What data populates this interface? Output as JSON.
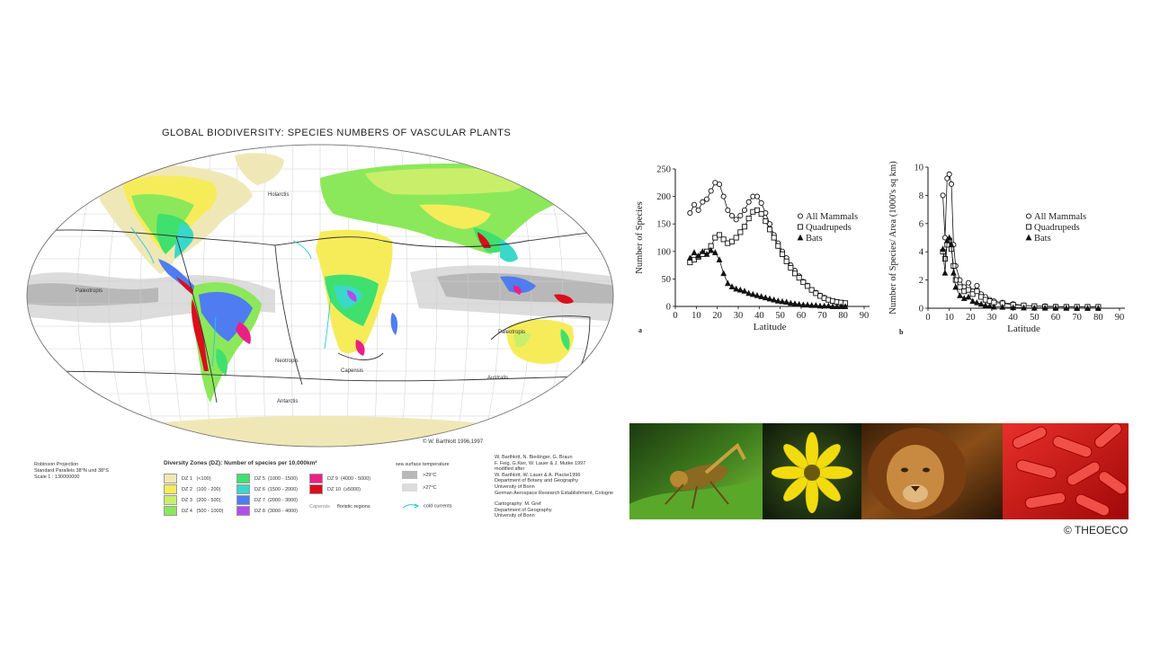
{
  "map": {
    "title": "GLOBAL BIODIVERSITY:  SPECIES NUMBERS OF VASCULAR PLANTS",
    "credit": "© W. Barthlott 1996,1997",
    "regions": [
      "Holarctis",
      "Paleotropis",
      "Paleotropis",
      "Neotropis",
      "Capensis",
      "Australis",
      "Antarctis"
    ],
    "projection": [
      "Robinson Projection",
      "Standard Parallels 38°N und 38°S",
      "Scale 1 : 130000000"
    ],
    "legend": {
      "title": "Diversity Zones (DZ): Number of species per 10.000km²",
      "zones": [
        {
          "label": "DZ  1",
          "range": "(<100)",
          "color": "#efe8b6"
        },
        {
          "label": "DZ  2",
          "range": "(100 - 200)",
          "color": "#f6ec5a"
        },
        {
          "label": "DZ  3",
          "range": "(200 - 500)",
          "color": "#c9ef6a"
        },
        {
          "label": "DZ  4",
          "range": "(500 - 1000)",
          "color": "#8be85a"
        },
        {
          "label": "DZ  5",
          "range": "(1000 - 1500)",
          "color": "#3fe06e"
        },
        {
          "label": "DZ  6",
          "range": "(1500 - 2000)",
          "color": "#3ad8c8"
        },
        {
          "label": "DZ  7",
          "range": "(2000 - 3000)",
          "color": "#4f7cf0"
        },
        {
          "label": "DZ  8",
          "range": "(3000 - 4000)",
          "color": "#b34cf0"
        },
        {
          "label": "DZ  9",
          "range": "(4000 - 5000)",
          "color": "#ec1f86"
        },
        {
          "label": "DZ 10",
          "range": "(≥5000)",
          "color": "#dc0d1c"
        }
      ],
      "floristic_example": "Capensis",
      "floristic_label": "floristic regions",
      "sst_title": "sea surface temperature",
      "sst": [
        {
          "label": ">29°C",
          "color": "#b8b8b8"
        },
        {
          "label": ">27°C",
          "color": "#dcdcdc"
        }
      ],
      "cold_currents": "cold currents"
    },
    "authors": [
      "W. Barthlott, N. Biedinger, G. Braun",
      "F. Feig, G.Kier, W. Lauer & J. Mutke 1997",
      "modified after",
      "W. Barthlott, W. Lauer & A. Placke1996",
      "Department of Botany and Geography",
      "University of Bonn",
      "German Aerospace Research Establishment, Cologne",
      "",
      "Cartography: M. Gref",
      "Department of Geography",
      "University of Bonn"
    ]
  },
  "chart_data": [
    {
      "type": "line",
      "panel": "a",
      "xlabel": "Latitude",
      "ylabel": "Number of Species",
      "xlim": [
        0,
        90
      ],
      "ylim": [
        0,
        250
      ],
      "xticks": [
        0,
        10,
        20,
        30,
        40,
        50,
        60,
        70,
        80,
        90
      ],
      "yticks": [
        0,
        50,
        100,
        150,
        200,
        250
      ],
      "series": [
        {
          "name": "All Mammals",
          "marker": "circle",
          "x": [
            7,
            9,
            11,
            13,
            15,
            17,
            19,
            21,
            23,
            25,
            27,
            29,
            31,
            33,
            35,
            37,
            39,
            41,
            43,
            45,
            47,
            49,
            51,
            53,
            55,
            57,
            59,
            61,
            63,
            65,
            67,
            69,
            71,
            73,
            75,
            77,
            79,
            81
          ],
          "y": [
            170,
            185,
            175,
            190,
            195,
            210,
            225,
            222,
            200,
            175,
            165,
            158,
            165,
            175,
            190,
            200,
            200,
            188,
            170,
            150,
            130,
            115,
            100,
            88,
            75,
            65,
            55,
            45,
            38,
            30,
            25,
            20,
            16,
            12,
            10,
            8,
            6,
            5
          ]
        },
        {
          "name": "Quadrupeds",
          "marker": "square",
          "x": [
            7,
            9,
            11,
            13,
            15,
            17,
            19,
            21,
            23,
            25,
            27,
            29,
            31,
            33,
            35,
            37,
            39,
            41,
            43,
            45,
            47,
            49,
            51,
            53,
            55,
            57,
            59,
            61,
            63,
            65,
            67,
            69,
            71,
            73,
            75,
            77,
            79,
            81
          ],
          "y": [
            80,
            85,
            90,
            95,
            100,
            110,
            125,
            130,
            122,
            115,
            118,
            125,
            135,
            145,
            160,
            172,
            175,
            168,
            155,
            140,
            125,
            110,
            95,
            82,
            70,
            60,
            52,
            44,
            37,
            30,
            24,
            19,
            15,
            12,
            10,
            8,
            7,
            6
          ]
        },
        {
          "name": "Bats",
          "marker": "triangle",
          "x": [
            7,
            9,
            11,
            13,
            15,
            17,
            19,
            21,
            23,
            25,
            27,
            29,
            31,
            33,
            35,
            37,
            39,
            41,
            43,
            45,
            47,
            49,
            51,
            53,
            55,
            57,
            59,
            61,
            63,
            65,
            67,
            69,
            71,
            73,
            75,
            77,
            79,
            81
          ],
          "y": [
            88,
            98,
            92,
            100,
            95,
            102,
            98,
            85,
            60,
            42,
            36,
            32,
            30,
            28,
            24,
            22,
            20,
            18,
            16,
            14,
            12,
            10,
            9,
            8,
            6,
            5,
            4,
            3,
            3,
            2,
            2,
            1,
            1,
            1,
            0,
            0,
            0,
            0
          ]
        }
      ]
    },
    {
      "type": "line",
      "panel": "b",
      "xlabel": "Latitude",
      "ylabel": "Number of Species/ Area (1000's sq km)",
      "xlim": [
        0,
        90
      ],
      "ylim": [
        0,
        10
      ],
      "xticks": [
        0,
        10,
        20,
        30,
        40,
        50,
        60,
        70,
        80,
        90
      ],
      "yticks": [
        0,
        2,
        4,
        6,
        8,
        10
      ],
      "series": [
        {
          "name": "All Mammals",
          "marker": "circle",
          "x": [
            7,
            8,
            9,
            10,
            11,
            12,
            13,
            15,
            17,
            19,
            21,
            23,
            25,
            27,
            29,
            31,
            35,
            40,
            45,
            50,
            55,
            60,
            65,
            70,
            75,
            80
          ],
          "y": [
            8.0,
            5.0,
            9.2,
            9.5,
            8.8,
            4.5,
            3.0,
            2.0,
            1.5,
            1.8,
            1.2,
            1.6,
            1.0,
            0.8,
            0.6,
            0.5,
            0.4,
            0.3,
            0.2,
            0.15,
            0.15,
            0.12,
            0.1,
            0.1,
            0.1,
            0.1
          ]
        },
        {
          "name": "Quadrupeds",
          "marker": "square",
          "x": [
            7,
            8,
            9,
            10,
            11,
            12,
            13,
            15,
            17,
            19,
            21,
            23,
            25,
            27,
            29,
            31,
            35,
            40,
            45,
            50,
            55,
            60,
            65,
            70,
            75,
            80
          ],
          "y": [
            4.0,
            3.5,
            4.5,
            4.8,
            4.2,
            3.0,
            2.0,
            1.5,
            1.2,
            1.3,
            1.0,
            1.2,
            0.8,
            0.6,
            0.5,
            0.4,
            0.35,
            0.25,
            0.2,
            0.15,
            0.12,
            0.1,
            0.1,
            0.1,
            0.1,
            0.1
          ]
        },
        {
          "name": "Bats",
          "marker": "triangle",
          "x": [
            7,
            8,
            9,
            10,
            11,
            12,
            13,
            15,
            17,
            19,
            21,
            23,
            25,
            27,
            29,
            31,
            35,
            40,
            45,
            50,
            55,
            60,
            65,
            70,
            75,
            80
          ],
          "y": [
            4.2,
            2.5,
            4.8,
            5.0,
            4.5,
            2.5,
            1.5,
            0.9,
            0.7,
            0.8,
            0.5,
            0.4,
            0.3,
            0.2,
            0.15,
            0.1,
            0.08,
            0.05,
            0.03,
            0.02,
            0.02,
            0.01,
            0.01,
            0,
            0,
            0
          ]
        }
      ]
    }
  ],
  "photos": [
    "grasshopper",
    "yellow flower",
    "lion",
    "bacteria"
  ],
  "copyright": "© THEOECO"
}
